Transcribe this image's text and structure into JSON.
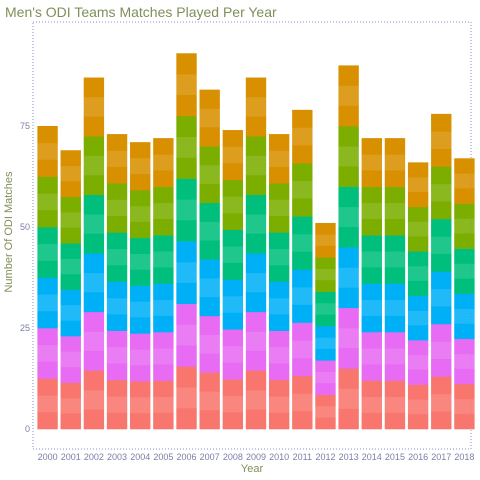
{
  "chart_data": {
    "type": "bar",
    "stacked": true,
    "title": "Men's ODI Teams Matches Played Per Year",
    "xlabel": "Year",
    "ylabel": "Number Of ODI Matches",
    "ylim": [
      0,
      95
    ],
    "yticks": [
      0,
      25,
      50,
      75
    ],
    "grid": false,
    "legend": "none",
    "categories": [
      "2000",
      "2001",
      "2002",
      "2003",
      "2004",
      "2005",
      "2006",
      "2007",
      "2008",
      "2009",
      "2010",
      "2011",
      "2012",
      "2013",
      "2014",
      "2015",
      "2016",
      "2017",
      "2018"
    ],
    "values": [
      75,
      69,
      87,
      73,
      71,
      72,
      93,
      84,
      74,
      87,
      73,
      79,
      51,
      90,
      72,
      72,
      66,
      78,
      67
    ],
    "colors": [
      "#f8766d",
      "#e76bf3",
      "#00b0f6",
      "#00bf7d",
      "#7cae00",
      "#d89000"
    ]
  }
}
